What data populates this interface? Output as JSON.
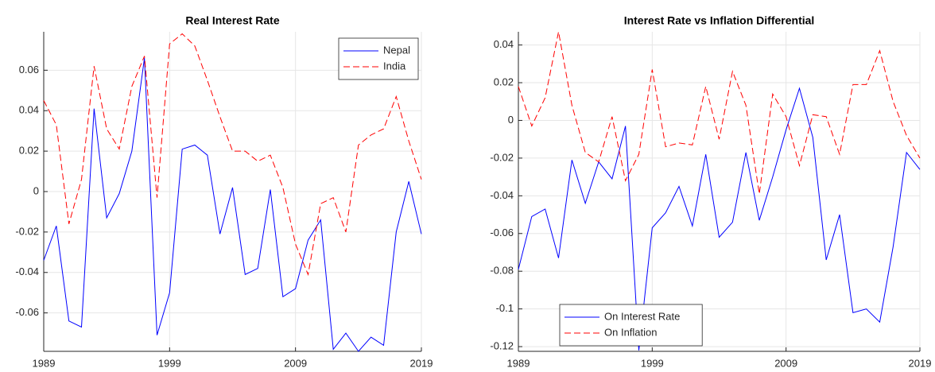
{
  "chart_data": [
    {
      "type": "line",
      "title": "Real Interest Rate",
      "x": [
        1989,
        1990,
        1991,
        1992,
        1993,
        1994,
        1995,
        1996,
        1997,
        1998,
        1999,
        2000,
        2001,
        2002,
        2003,
        2004,
        2005,
        2006,
        2007,
        2008,
        2009,
        2010,
        2011,
        2012,
        2013,
        2014,
        2015,
        2016,
        2017,
        2018,
        2019
      ],
      "series": [
        {
          "name": "Nepal",
          "color": "#0000ff",
          "line_style": "solid",
          "values": [
            -0.034,
            -0.017,
            -0.064,
            -0.067,
            0.041,
            -0.013,
            -0.001,
            0.02,
            0.066,
            -0.071,
            -0.05,
            0.021,
            0.023,
            0.018,
            -0.021,
            0.002,
            -0.041,
            -0.038,
            0.001,
            -0.052,
            -0.048,
            -0.024,
            -0.014,
            -0.078,
            -0.07,
            -0.079,
            -0.072,
            -0.076,
            -0.02,
            0.005,
            -0.021
          ]
        },
        {
          "name": "India",
          "color": "#ff0000",
          "line_style": "dashed",
          "values": [
            0.045,
            0.033,
            -0.016,
            0.006,
            0.062,
            0.031,
            0.021,
            0.052,
            0.067,
            -0.003,
            0.073,
            0.078,
            0.072,
            0.055,
            0.037,
            0.02,
            0.02,
            0.015,
            0.018,
            0.002,
            -0.026,
            -0.041,
            -0.006,
            -0.003,
            -0.02,
            0.023,
            0.028,
            0.031,
            0.047,
            0.025,
            0.006
          ]
        }
      ],
      "xlim": [
        1989,
        2019
      ],
      "xticks": [
        1989,
        1999,
        2009,
        2019
      ],
      "ylim": [
        -0.079,
        0.079
      ],
      "yticks": [
        -0.06,
        -0.04,
        -0.02,
        0,
        0.02,
        0.04,
        0.06
      ],
      "grid": true,
      "legend": "upper-right"
    },
    {
      "type": "line",
      "title": "Interest Rate vs Inflation Differential",
      "x": [
        1989,
        1990,
        1991,
        1992,
        1993,
        1994,
        1995,
        1996,
        1997,
        1998,
        1999,
        2000,
        2001,
        2002,
        2003,
        2004,
        2005,
        2006,
        2007,
        2008,
        2009,
        2010,
        2011,
        2012,
        2013,
        2014,
        2015,
        2016,
        2017,
        2018,
        2019
      ],
      "series": [
        {
          "name": "On Interest Rate",
          "color": "#0000ff",
          "line_style": "solid",
          "values": [
            -0.079,
            -0.051,
            -0.047,
            -0.073,
            -0.021,
            -0.044,
            -0.022,
            -0.031,
            -0.003,
            -0.122,
            -0.057,
            -0.049,
            -0.035,
            -0.056,
            -0.018,
            -0.062,
            -0.054,
            -0.017,
            -0.053,
            -0.03,
            -0.005,
            0.017,
            -0.009,
            -0.074,
            -0.05,
            -0.102,
            -0.1,
            -0.107,
            -0.067,
            -0.017,
            -0.026
          ]
        },
        {
          "name": "On Inflation",
          "color": "#ff0000",
          "line_style": "dashed",
          "values": [
            0.018,
            -0.003,
            0.012,
            0.047,
            0.008,
            -0.017,
            -0.022,
            0.002,
            -0.032,
            -0.018,
            0.027,
            -0.014,
            -0.012,
            -0.013,
            0.018,
            -0.01,
            0.026,
            0.008,
            -0.039,
            0.014,
            0.002,
            -0.024,
            0.003,
            0.002,
            -0.018,
            0.019,
            0.019,
            0.037,
            0.01,
            -0.008,
            -0.02
          ]
        }
      ],
      "xlim": [
        1989,
        2019
      ],
      "xticks": [
        1989,
        1999,
        2009,
        2019
      ],
      "ylim": [
        -0.1225,
        0.047
      ],
      "yticks": [
        -0.12,
        -0.1,
        -0.08,
        -0.06,
        -0.04,
        -0.02,
        0,
        0.02,
        0.04
      ],
      "grid": true,
      "legend": "lower-left"
    }
  ]
}
